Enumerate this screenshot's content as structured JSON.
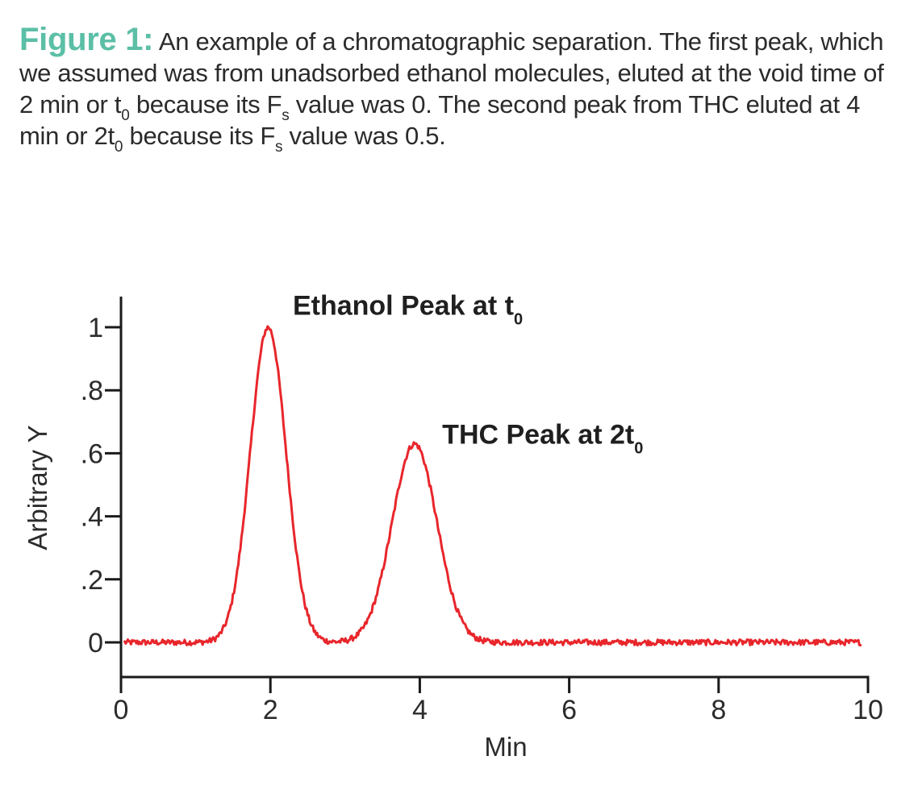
{
  "caption": {
    "label": "Figure 1:",
    "seg1": " An example of a chromatographic separation. The first peak, which we assumed was from unadsorbed ethanol molecules, eluted at the void time of 2 min or t",
    "sub1": "0",
    "seg2": " because its F",
    "sub2": "s",
    "seg3": " value was 0. The second peak from THC eluted at 4 min or 2t",
    "sub3": "0",
    "seg4": " because its F",
    "sub4": "s",
    "seg5": " value was 0.5."
  },
  "chart_data": {
    "type": "line",
    "xlabel": "Min",
    "ylabel": "Arbitrary Y",
    "xlim": [
      0,
      10
    ],
    "ylim": [
      -0.22,
      1.08
    ],
    "x_ticks": [
      {
        "value": 0,
        "label": "0"
      },
      {
        "value": 2,
        "label": "2"
      },
      {
        "value": 4,
        "label": "4"
      },
      {
        "value": 6,
        "label": "6"
      },
      {
        "value": 8,
        "label": "8"
      },
      {
        "value": 10,
        "label": "10"
      }
    ],
    "y_ticks": [
      {
        "value": 0,
        "label": "0"
      },
      {
        "value": 0.2,
        "label": ".2"
      },
      {
        "value": 0.4,
        "label": ".4"
      },
      {
        "value": 0.6,
        "label": ".6"
      },
      {
        "value": 0.8,
        "label": ".8"
      },
      {
        "value": 1,
        "label": "1"
      }
    ],
    "grid": false,
    "series": [
      {
        "color": "#e8262b",
        "peaks": [
          {
            "center": 1.97,
            "height": 1.0,
            "sigma": 0.24
          },
          {
            "center": 3.93,
            "height": 0.63,
            "sigma": 0.3
          }
        ],
        "baseline": 0.0,
        "x_range": [
          0.05,
          9.9
        ]
      }
    ],
    "annotations": [
      {
        "name": "ethanol-peak-annotation",
        "text": "Ethanol Peak at t",
        "sub": "0",
        "x": 2.3,
        "y": 1.04
      },
      {
        "name": "thc-peak-annotation",
        "text": "THC Peak at 2t",
        "sub": "0",
        "x": 4.3,
        "y": 0.63
      }
    ]
  }
}
